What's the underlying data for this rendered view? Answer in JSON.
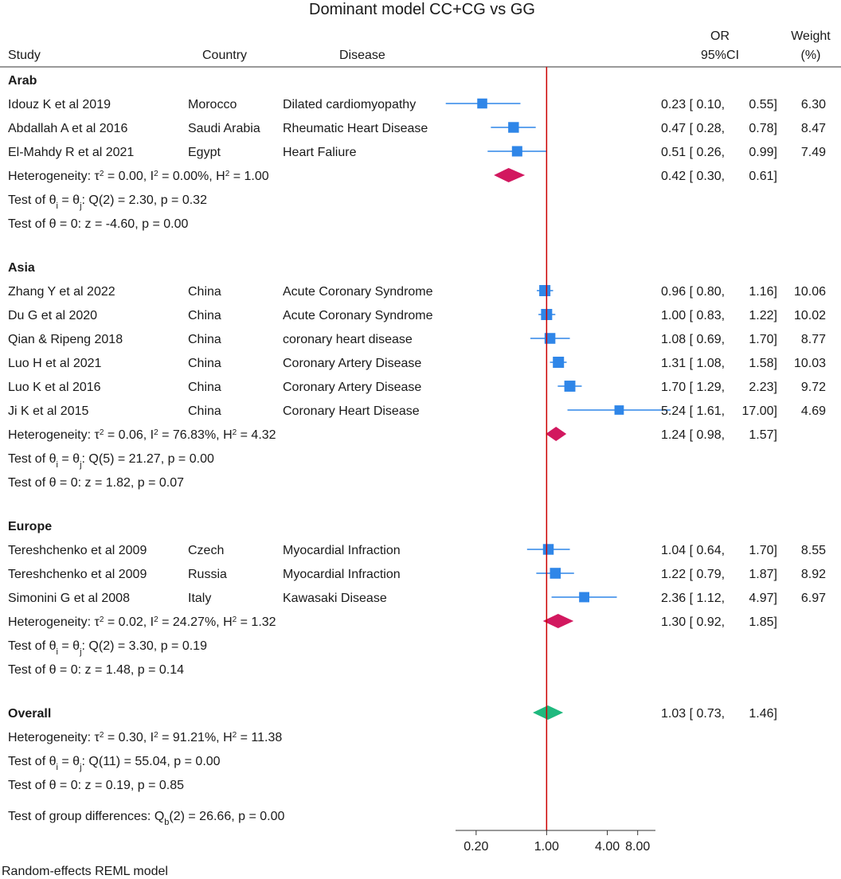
{
  "chart_data": {
    "type": "forest",
    "title": "Dominant model CC+CG vs GG",
    "columns": {
      "study": "Study",
      "country": "Country",
      "disease": "Disease",
      "or_line1": "OR",
      "or_line2": "95%CI",
      "weight_line1": "Weight",
      "weight_line2": "(%)"
    },
    "scale": "log",
    "xlim": [
      0.125,
      12
    ],
    "xticks": [
      0.2,
      1,
      4,
      8
    ],
    "xtick_labels": [
      "0.20",
      "1.00",
      "4.00",
      "8.00"
    ],
    "null_line": 1,
    "groups": [
      {
        "name": "Arab",
        "studies": [
          {
            "study": "Idouz K  et al 2019",
            "country": "Morocco",
            "disease": "Dilated cardiomyopathy",
            "or": 0.23,
            "lo": 0.1,
            "hi": 0.55,
            "or_text": "0.23 [ 0.10,",
            "hi_text": "0.55]",
            "weight": 6.3,
            "weight_text": "6.30"
          },
          {
            "study": "Abdallah A et al 2016",
            "country": "Saudi Arabia",
            "disease": "Rheumatic Heart Disease",
            "or": 0.47,
            "lo": 0.28,
            "hi": 0.78,
            "or_text": "0.47 [ 0.28,",
            "hi_text": "0.78]",
            "weight": 8.47,
            "weight_text": "8.47"
          },
          {
            "study": "El-Mahdy R et al 2021",
            "country": "Egypt",
            "disease": "Heart Faliure",
            "or": 0.51,
            "lo": 0.26,
            "hi": 0.99,
            "or_text": "0.51 [ 0.26,",
            "hi_text": "0.99]",
            "weight": 7.49,
            "weight_text": "7.49"
          }
        ],
        "pooled": {
          "or": 0.42,
          "lo": 0.3,
          "hi": 0.61,
          "or_text": "0.42 [ 0.30,",
          "hi_text": "0.61]"
        },
        "heterogeneity": {
          "prefix": "Heterogeneity: τ",
          "tau2": "= 0.00, I",
          "i2": "= 0.00%, H",
          "h2": "= 1.00"
        },
        "q_test": {
          "prefix": "Test of θ",
          "sub_i": "i",
          "mid": " = θ",
          "sub_j": "j",
          "rest": ": Q(2) = 2.30, p = 0.32"
        },
        "z_test": "Test of θ = 0: z = -4.60, p = 0.00"
      },
      {
        "name": "Asia",
        "studies": [
          {
            "study": "Zhang Y et al 2022",
            "country": "China",
            "disease": "Acute Coronary Syndrome",
            "or": 0.96,
            "lo": 0.8,
            "hi": 1.16,
            "or_text": "0.96 [ 0.80,",
            "hi_text": "1.16]",
            "weight": 10.06,
            "weight_text": "10.06"
          },
          {
            "study": "Du G  et al 2020",
            "country": "China",
            "disease": "Acute Coronary Syndrome",
            "or": 1.0,
            "lo": 0.83,
            "hi": 1.22,
            "or_text": "1.00 [ 0.83,",
            "hi_text": "1.22]",
            "weight": 10.02,
            "weight_text": "10.02"
          },
          {
            "study": "Qian & Ripeng 2018",
            "country": "China",
            "disease": "coronary heart disease",
            "or": 1.08,
            "lo": 0.69,
            "hi": 1.7,
            "or_text": "1.08 [ 0.69,",
            "hi_text": "1.70]",
            "weight": 8.77,
            "weight_text": "8.77"
          },
          {
            "study": "Luo H et al 2021",
            "country": "China",
            "disease": "Coronary Artery Disease",
            "or": 1.31,
            "lo": 1.08,
            "hi": 1.58,
            "or_text": "1.31 [ 1.08,",
            "hi_text": "1.58]",
            "weight": 10.03,
            "weight_text": "10.03"
          },
          {
            "study": "Luo K et al 2016",
            "country": "China",
            "disease": "Coronary Artery Disease",
            "or": 1.7,
            "lo": 1.29,
            "hi": 2.23,
            "or_text": "1.70 [ 1.29,",
            "hi_text": "2.23]",
            "weight": 9.72,
            "weight_text": "9.72"
          },
          {
            "study": "Ji K  et al 2015",
            "country": "China",
            "disease": "Coronary Heart Disease",
            "or": 5.24,
            "lo": 1.61,
            "hi": 17.0,
            "or_text": "5.24 [ 1.61,",
            "hi_text": "17.00]",
            "weight": 4.69,
            "weight_text": "4.69"
          }
        ],
        "pooled": {
          "or": 1.24,
          "lo": 0.98,
          "hi": 1.57,
          "or_text": "1.24 [ 0.98,",
          "hi_text": "1.57]"
        },
        "heterogeneity": {
          "prefix": "Heterogeneity: τ",
          "tau2": "= 0.06, I",
          "i2": "= 76.83%, H",
          "h2": "= 4.32"
        },
        "q_test": {
          "prefix": "Test of θ",
          "sub_i": "i",
          "mid": " = θ",
          "sub_j": "j",
          "rest": ": Q(5) = 21.27, p = 0.00"
        },
        "z_test": "Test of θ = 0: z = 1.82, p = 0.07"
      },
      {
        "name": "Europe",
        "studies": [
          {
            "study": "Tereshchenko  et al 2009",
            "country": "Czech",
            "disease": "Myocardial Infraction",
            "or": 1.04,
            "lo": 0.64,
            "hi": 1.7,
            "or_text": "1.04 [ 0.64,",
            "hi_text": "1.70]",
            "weight": 8.55,
            "weight_text": "8.55"
          },
          {
            "study": "Tereshchenko  et al 2009",
            "country": "Russia",
            "disease": "Myocardial Infraction",
            "or": 1.22,
            "lo": 0.79,
            "hi": 1.87,
            "or_text": "1.22 [ 0.79,",
            "hi_text": "1.87]",
            "weight": 8.92,
            "weight_text": "8.92"
          },
          {
            "study": "Simonini G et al 2008",
            "country": "Italy",
            "disease": "Kawasaki Disease",
            "or": 2.36,
            "lo": 1.12,
            "hi": 4.97,
            "or_text": "2.36 [ 1.12,",
            "hi_text": "4.97]",
            "weight": 6.97,
            "weight_text": "6.97"
          }
        ],
        "pooled": {
          "or": 1.3,
          "lo": 0.92,
          "hi": 1.85,
          "or_text": "1.30 [ 0.92,",
          "hi_text": "1.85]"
        },
        "heterogeneity": {
          "prefix": "Heterogeneity: τ",
          "tau2": "= 0.02, I",
          "i2": "= 24.27%, H",
          "h2": "= 1.32"
        },
        "q_test": {
          "prefix": "Test of θ",
          "sub_i": "i",
          "mid": " = θ",
          "sub_j": "j",
          "rest": ": Q(2) = 3.30, p = 0.19"
        },
        "z_test": "Test of θ = 0: z = 1.48, p = 0.14"
      }
    ],
    "overall": {
      "name": "Overall",
      "pooled": {
        "or": 1.03,
        "lo": 0.73,
        "hi": 1.46,
        "or_text": "1.03 [ 0.73,",
        "hi_text": "1.46]"
      },
      "heterogeneity": {
        "prefix": "Heterogeneity: τ",
        "tau2": "= 0.30, I",
        "i2": "= 91.21%, H",
        "h2": "= 11.38"
      },
      "q_test": {
        "prefix": "Test of θ",
        "sub_i": "i",
        "mid": " = θ",
        "sub_j": "j",
        "rest": ": Q(11) = 55.04, p = 0.00"
      },
      "z_test": "Test of θ = 0: z = 0.19, p = 0.85",
      "group_diff": {
        "prefix": "Test of group differences: Q",
        "sub_b": "b",
        "rest": "(2) = 26.66, p = 0.00"
      }
    },
    "superscript": "2",
    "footnote": "Random-effects REML model",
    "colors": {
      "study_marker": "#2f86e8",
      "ci_line": "#2f86e8",
      "subgroup_diamond": "#d2185f",
      "overall_diamond": "#1fb97e",
      "null_line": "#cc0000",
      "axis": "#333333",
      "text": "#1a1a1a"
    }
  }
}
